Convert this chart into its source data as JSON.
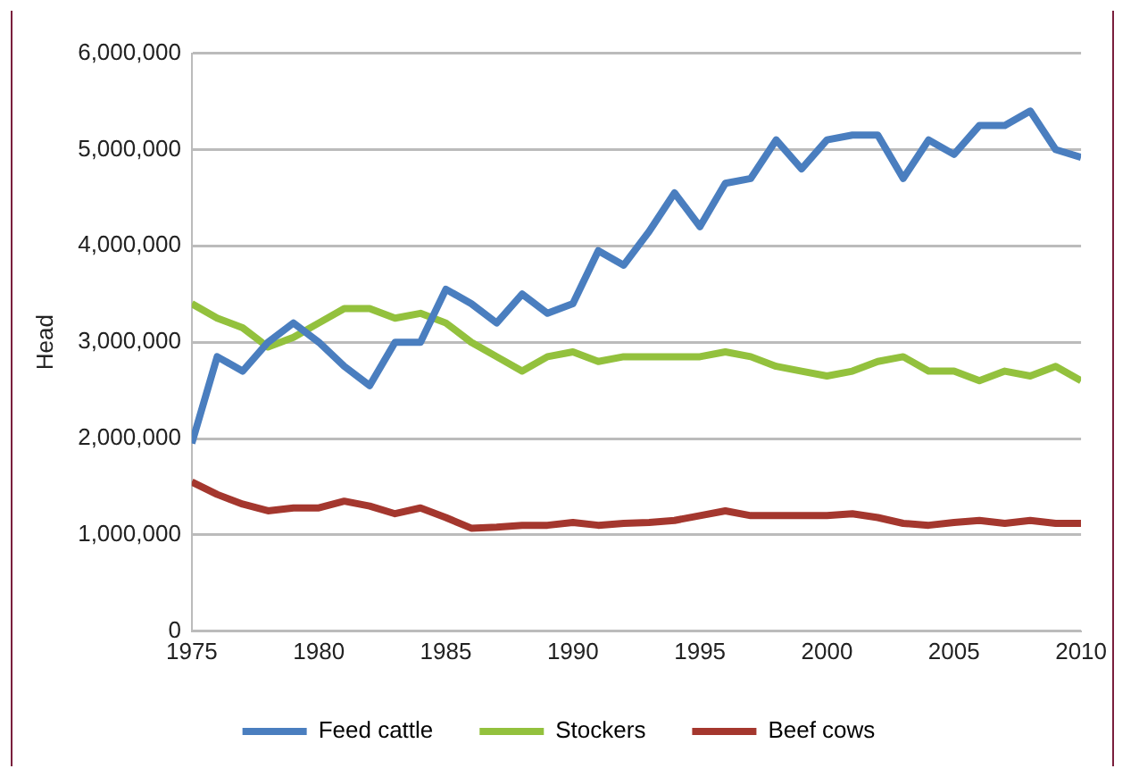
{
  "chart_data": {
    "type": "line",
    "ylabel": "Head",
    "x": [
      1975,
      1976,
      1977,
      1978,
      1979,
      1980,
      1981,
      1982,
      1983,
      1984,
      1985,
      1986,
      1987,
      1988,
      1989,
      1990,
      1991,
      1992,
      1993,
      1994,
      1995,
      1996,
      1997,
      1998,
      1999,
      2000,
      2001,
      2002,
      2003,
      2004,
      2005,
      2006,
      2007,
      2008,
      2009,
      2010
    ],
    "series": [
      {
        "name": "Feed cattle",
        "color": "#4a7ebf",
        "values": [
          1950000,
          2850000,
          2700000,
          3000000,
          3200000,
          3000000,
          2750000,
          2550000,
          3000000,
          3000000,
          3550000,
          3400000,
          3200000,
          3500000,
          3300000,
          3400000,
          3950000,
          3800000,
          4150000,
          4550000,
          4200000,
          4650000,
          4700000,
          5100000,
          4800000,
          5100000,
          5150000,
          5150000,
          4700000,
          5100000,
          4950000,
          5250000,
          5250000,
          5400000,
          5000000,
          4920000
        ]
      },
      {
        "name": "Stockers",
        "color": "#93c13d",
        "values": [
          3400000,
          3250000,
          3150000,
          2950000,
          3050000,
          3200000,
          3350000,
          3350000,
          3250000,
          3300000,
          3200000,
          3000000,
          2850000,
          2700000,
          2850000,
          2900000,
          2800000,
          2850000,
          2850000,
          2850000,
          2850000,
          2900000,
          2850000,
          2750000,
          2700000,
          2650000,
          2700000,
          2800000,
          2850000,
          2700000,
          2700000,
          2600000,
          2700000,
          2650000,
          2750000,
          2600000
        ]
      },
      {
        "name": "Beef cows",
        "color": "#a4372e",
        "values": [
          1550000,
          1420000,
          1320000,
          1250000,
          1280000,
          1280000,
          1350000,
          1300000,
          1220000,
          1280000,
          1180000,
          1070000,
          1080000,
          1100000,
          1100000,
          1130000,
          1100000,
          1120000,
          1130000,
          1150000,
          1200000,
          1250000,
          1200000,
          1200000,
          1200000,
          1200000,
          1220000,
          1180000,
          1120000,
          1100000,
          1130000,
          1150000,
          1120000,
          1150000,
          1120000,
          1120000
        ]
      }
    ],
    "xlim": [
      1975,
      2010
    ],
    "xticks": [
      1975,
      1980,
      1985,
      1990,
      1995,
      2000,
      2005,
      2010
    ],
    "ylim": [
      0,
      6000000
    ],
    "yticks": [
      0,
      {
        "value": 1000000,
        "label": "1,000,000"
      },
      {
        "value": 2000000,
        "label": "2,000,000"
      },
      {
        "value": 3000000,
        "label": "3,000,000"
      },
      {
        "value": 4000000,
        "label": "4,000,000"
      },
      {
        "value": 5000000,
        "label": "5,000,000"
      },
      {
        "value": 6000000,
        "label": "6,000,000"
      }
    ],
    "grid": "y",
    "legend": "bottom",
    "marker": "none",
    "line_style": "solid"
  }
}
